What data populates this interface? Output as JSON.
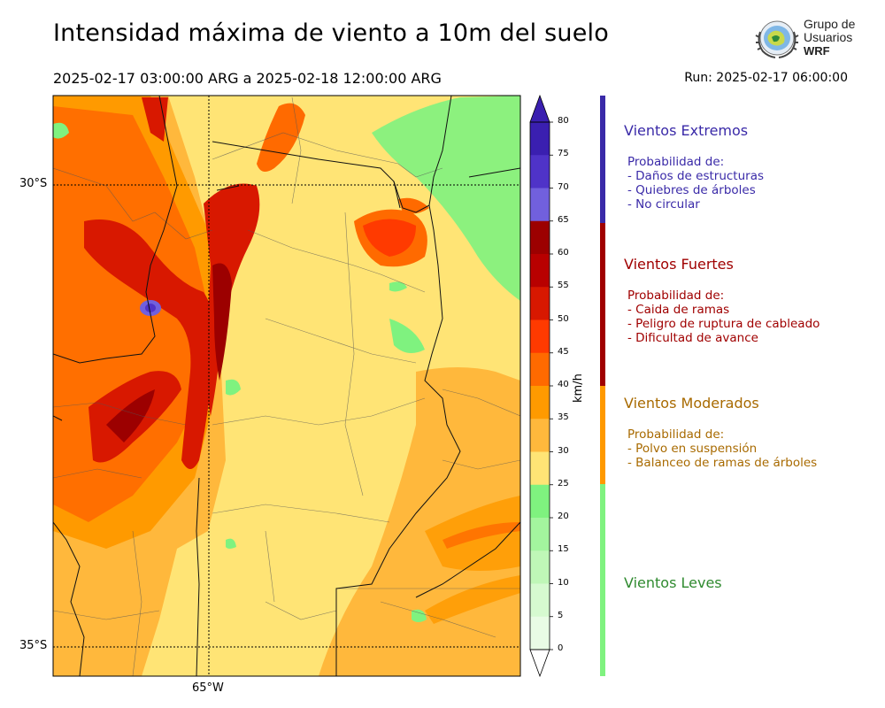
{
  "header": {
    "title": "Intensidad máxima de viento a 10m del suelo",
    "period": "2025-02-17 03:00:00 ARG  a  2025-02-18 12:00:00 ARG",
    "run": "Run: 2025-02-17 06:00:00"
  },
  "logo": {
    "line1": "Grupo de",
    "line2": "Usuarios",
    "line3": "WRF",
    "icon": "globe-laurel-icon"
  },
  "map": {
    "lat_labels": [
      "30°S",
      "35°S"
    ],
    "lon_labels": [
      "65°W"
    ]
  },
  "colorbar": {
    "unit": "km/h",
    "ticks": [
      "80",
      "75",
      "70",
      "65",
      "60",
      "55",
      "50",
      "45",
      "40",
      "35",
      "30",
      "25",
      "20",
      "15",
      "10",
      "5",
      "0"
    ],
    "colors": [
      "#3a1fb0",
      "#4f33c8",
      "#7160dd",
      "#9c0000",
      "#b80000",
      "#d81800",
      "#ff3a00",
      "#ff6a00",
      "#ff9a00",
      "#ffb83c",
      "#ffe475",
      "#7ff27f",
      "#a3f59e",
      "#bff7b7",
      "#d6fad0",
      "#e9fce5"
    ]
  },
  "categories": [
    {
      "heading": "Vientos Extremos",
      "color": "#3a2aa8",
      "bar_color": "#3a2aa8",
      "lines": [
        "Probabilidad de:",
        "- Daños de estructuras",
        "- Quiebres de árboles",
        "- No circular"
      ]
    },
    {
      "heading": "Vientos Fuertes",
      "color": "#a00000",
      "bar_color": "#a00000",
      "lines": [
        "Probabilidad de:",
        "- Caida de ramas",
        "- Peligro de ruptura de cableado",
        "- Dificultad de avance"
      ]
    },
    {
      "heading": "Vientos Moderados",
      "color": "#a86a00",
      "bar_color": "#ff9900",
      "lines": [
        "Probabilidad de:",
        "- Polvo en suspensión",
        "- Balanceo de ramas de árboles"
      ]
    },
    {
      "heading": "Vientos Leves",
      "color": "#2f8a2f",
      "bar_color": "#7ff27f",
      "lines": []
    }
  ]
}
